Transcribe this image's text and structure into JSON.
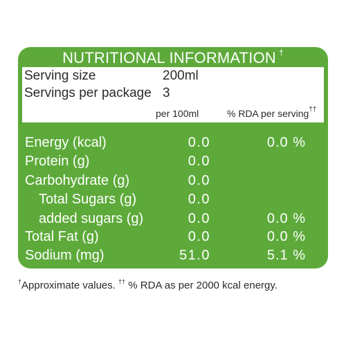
{
  "title": "NUTRITIONAL INFORMATION",
  "title_mark": "†",
  "serving": {
    "size_label": "Serving size",
    "size_value": "200ml",
    "per_package_label": "Servings per package",
    "per_package_value": "3"
  },
  "columns": {
    "per100": "per 100ml",
    "rda": "% RDA per serving",
    "rda_mark": "††"
  },
  "rows": [
    {
      "label": "Energy (kcal)",
      "per100": "0.0",
      "rda": "0.0 %"
    },
    {
      "label": "Protein (g)",
      "per100": "0.0",
      "rda": ""
    },
    {
      "label": "Carbohydrate (g)",
      "per100": "0.0",
      "rda": ""
    },
    {
      "label": "Total Sugars (g)",
      "per100": "0.0",
      "rda": ""
    },
    {
      "label": "added sugars (g)",
      "per100": "0.0",
      "rda": "0.0 %"
    },
    {
      "label": "Total Fat (g)",
      "per100": "0.0",
      "rda": "0.0 %"
    },
    {
      "label": "Sodium (mg)",
      "per100": "51.0",
      "rda": "5.1 %"
    }
  ],
  "footnote": {
    "mark1": "†",
    "text1": "Approximate values. ",
    "mark2": "††",
    "text2": " % RDA as per 2000 kcal energy."
  },
  "colors": {
    "panel_green": "#5daa3a",
    "text_dark": "#2a2a2a",
    "text_light": "#ffffff"
  }
}
